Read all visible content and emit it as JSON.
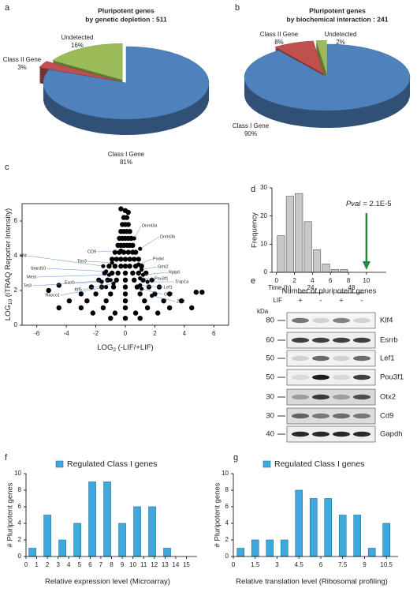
{
  "chart_data": [
    {
      "type": "pie",
      "panel": "a",
      "title": [
        "Pluripotent genes",
        "by genetic depletion : 511"
      ],
      "categories": [
        "Class I Gene",
        "Class II Gene",
        "Undetected"
      ],
      "values": [
        81,
        3,
        16
      ],
      "value_labels": [
        "81%",
        "3%",
        "16%"
      ],
      "colors": [
        "#4f81bd",
        "#c0504d",
        "#9bbb59"
      ]
    },
    {
      "type": "pie",
      "panel": "b",
      "title": [
        "Pluripotent genes",
        "by biochemical interaction : 241"
      ],
      "categories": [
        "Class I Gene",
        "Class II Gene",
        "Undetected"
      ],
      "values": [
        90,
        8,
        2
      ],
      "value_labels": [
        "90%",
        "8%",
        "2%"
      ],
      "colors": [
        "#4f81bd",
        "#c0504d",
        "#9bbb59"
      ]
    },
    {
      "type": "scatter",
      "panel": "c",
      "xlabel": [
        "LOG",
        "2",
        " (-LIF/+LIF)"
      ],
      "ylabel": [
        "LOG",
        "10",
        " (iTRAQ Reporter Intensity)"
      ],
      "color": "#000000",
      "x": [
        0,
        -0.1,
        0.1,
        -0.2,
        0,
        0.2,
        -0.3,
        -0.1,
        0.1,
        0.3,
        -0.4,
        -0.2,
        0,
        0.2,
        0.4,
        -0.5,
        -0.3,
        -0.1,
        0.1,
        0.3,
        0.5,
        -0.7,
        -0.4,
        -0.1,
        0.2,
        0.5,
        0.7,
        -0.9,
        -0.6,
        -0.3,
        0,
        0.3,
        0.6,
        0.9,
        -1.1,
        -0.7,
        -0.3,
        0,
        0.3,
        0.7,
        1.1,
        -1.4,
        -0.9,
        -0.5,
        0,
        0.5,
        0.9,
        1.4,
        -1.8,
        -1.2,
        -0.6,
        0,
        0.6,
        1.2,
        1.8,
        -2.3,
        -1.6,
        -0.8,
        0,
        0.8,
        1.6,
        2.3,
        -3,
        -2,
        -1,
        0,
        1,
        2,
        3,
        -3.8,
        -2.6,
        -1.3,
        0,
        1.3,
        2.6,
        3.8,
        -4.5,
        -3,
        -1.5,
        0,
        1.5,
        3,
        4.5,
        -2.2,
        -0.7,
        0.7,
        2.2,
        -1,
        0,
        1,
        -5.2,
        -4.5,
        4.8,
        5.2,
        -0.3,
        0.2
      ],
      "y": [
        6.6,
        6.2,
        6.2,
        5.8,
        5.8,
        5.8,
        5.4,
        5.4,
        5.4,
        5.4,
        5,
        5,
        5,
        5,
        5,
        4.6,
        4.6,
        4.6,
        4.6,
        4.6,
        4.6,
        4.2,
        4.2,
        4.2,
        4.2,
        4.2,
        4.2,
        3.8,
        3.8,
        3.8,
        3.8,
        3.8,
        3.8,
        3.8,
        3.4,
        3.4,
        3.4,
        3.4,
        3.4,
        3.4,
        3.4,
        3,
        3,
        3,
        3,
        3,
        3,
        3,
        2.6,
        2.6,
        2.6,
        2.6,
        2.6,
        2.6,
        2.6,
        2.2,
        2.2,
        2.2,
        2.2,
        2.2,
        2.2,
        2.2,
        1.8,
        1.8,
        1.8,
        1.8,
        1.8,
        1.8,
        1.8,
        1.4,
        1.4,
        1.4,
        1.4,
        1.4,
        1.4,
        1.4,
        1,
        1,
        1,
        1,
        1,
        1,
        1,
        0.7,
        0.7,
        0.7,
        0.7,
        0.4,
        0.4,
        0.4,
        2,
        2.3,
        1.9,
        1.9,
        6.7,
        6.5
      ],
      "annotations": [
        {
          "label": "Dnmt3a",
          "x": 0.6,
          "y": 5.0
        },
        {
          "label": "Dnmt3b",
          "x": 1.0,
          "y": 4.4
        },
        {
          "label": "CD9",
          "x": -0.3,
          "y": 4.3
        },
        {
          "label": "Klf4",
          "x": -1.5,
          "y": 3.4
        },
        {
          "label": "Tbx3",
          "x": -0.9,
          "y": 3.6
        },
        {
          "label": "Stard10",
          "x": -1.3,
          "y": 3.1
        },
        {
          "label": "Mest",
          "x": -1.1,
          "y": 2.9
        },
        {
          "label": "Esrrb",
          "x": -1.0,
          "y": 2.6
        },
        {
          "label": "Klf5",
          "x": -0.8,
          "y": 2.4
        },
        {
          "label": "Tet3",
          "x": -1.6,
          "y": 2.5
        },
        {
          "label": "Rasco1",
          "x": -1.3,
          "y": 2.2
        },
        {
          "label": "Podxl",
          "x": 0.9,
          "y": 3.5
        },
        {
          "label": "Grhl2",
          "x": 1.1,
          "y": 3.2
        },
        {
          "label": "Rplp0",
          "x": 1.2,
          "y": 2.9
        },
        {
          "label": "Pou3f1",
          "x": 1.0,
          "y": 2.7
        },
        {
          "label": "Trap1a",
          "x": 1.5,
          "y": 2.5
        },
        {
          "label": "Lef1",
          "x": 1.0,
          "y": 2.3
        },
        {
          "label": "Otx2",
          "x": 1.1,
          "y": 2.1
        },
        {
          "label": "Zic2",
          "x": 1.8,
          "y": 1.7
        }
      ],
      "xlim": [
        -7,
        7
      ],
      "xticks": [
        -6,
        -4,
        -2,
        0,
        2,
        4,
        6
      ],
      "ylim": [
        0,
        7
      ],
      "yticks": [
        0,
        2,
        4,
        6
      ]
    },
    {
      "type": "histogram",
      "panel": "d",
      "xlabel": "Number of pluripotent genes",
      "ylabel": "Frequency",
      "bins": [
        0,
        1,
        2,
        3,
        4,
        5,
        6,
        7,
        8
      ],
      "counts": [
        13,
        27,
        28,
        18,
        8,
        3,
        1,
        1
      ],
      "color": "#c8c8c8",
      "xlim": [
        -0.5,
        12.2
      ],
      "xticks": [
        0,
        2,
        4,
        6,
        8,
        10
      ],
      "ylim": [
        0,
        30
      ],
      "yticks": [
        0,
        10,
        20,
        30
      ],
      "annotation": {
        "text": [
          "Pval",
          "= 2.1E-5"
        ],
        "x": 10,
        "color": "#1e8c3c"
      }
    },
    {
      "type": "bar",
      "panel": "f",
      "xlabel": "Relative expression level (Microarray)",
      "ylabel": "# Pluripotent genes",
      "x": [
        0.6,
        2,
        3.4,
        4.8,
        6.2,
        7.6,
        9,
        10.4,
        11.8,
        13.2
      ],
      "series": [
        {
          "name": "Regulated Class I genes",
          "color": "#3fa9dd",
          "values": [
            1,
            5,
            2,
            4,
            9,
            9,
            4,
            6,
            6,
            1
          ]
        }
      ],
      "xlim": [
        0,
        16
      ],
      "xticks": [
        0,
        1,
        2,
        3,
        4,
        5,
        6,
        7,
        8,
        9,
        10,
        11,
        12,
        13,
        14,
        15
      ],
      "ylim": [
        0,
        10
      ],
      "yticks": [
        0,
        2,
        4,
        6,
        8,
        10
      ]
    },
    {
      "type": "bar",
      "panel": "g",
      "xlabel": "Relative translation level (Ribosomal profiling)",
      "ylabel": "# Pluripotent genes",
      "x": [
        0.5,
        1.5,
        2.5,
        3.5,
        4.5,
        5.5,
        6.5,
        7.5,
        8.5,
        9.5,
        10.5
      ],
      "series": [
        {
          "name": "Regulated Class I genes",
          "color": "#3fa9dd",
          "values": [
            1,
            2,
            2,
            2,
            8,
            7,
            7,
            5,
            5,
            1,
            4
          ]
        }
      ],
      "xlim": [
        0,
        11.3
      ],
      "xticks": [
        0,
        1.5,
        3,
        4.5,
        6,
        7.5,
        9,
        10.5
      ],
      "ylim": [
        0,
        10
      ],
      "yticks": [
        0,
        2,
        4,
        6,
        8,
        10
      ]
    }
  ],
  "blot": {
    "panel": "e",
    "time_label": "Time (h)",
    "times": [
      "24",
      "48"
    ],
    "lif_label": "LIF",
    "lif": [
      "+",
      "-",
      "+",
      "-"
    ],
    "kda_label": "kDa",
    "rows": [
      {
        "kda": 80,
        "protein": "Klf4"
      },
      {
        "kda": 60,
        "protein": "Esrrb"
      },
      {
        "kda": 50,
        "protein": "Lef1"
      },
      {
        "kda": 50,
        "protein": "Pou3f1"
      },
      {
        "kda": 30,
        "protein": "Otx2"
      },
      {
        "kda": 30,
        "protein": "Cd9"
      },
      {
        "kda": 40,
        "protein": "Gapdh"
      }
    ]
  }
}
